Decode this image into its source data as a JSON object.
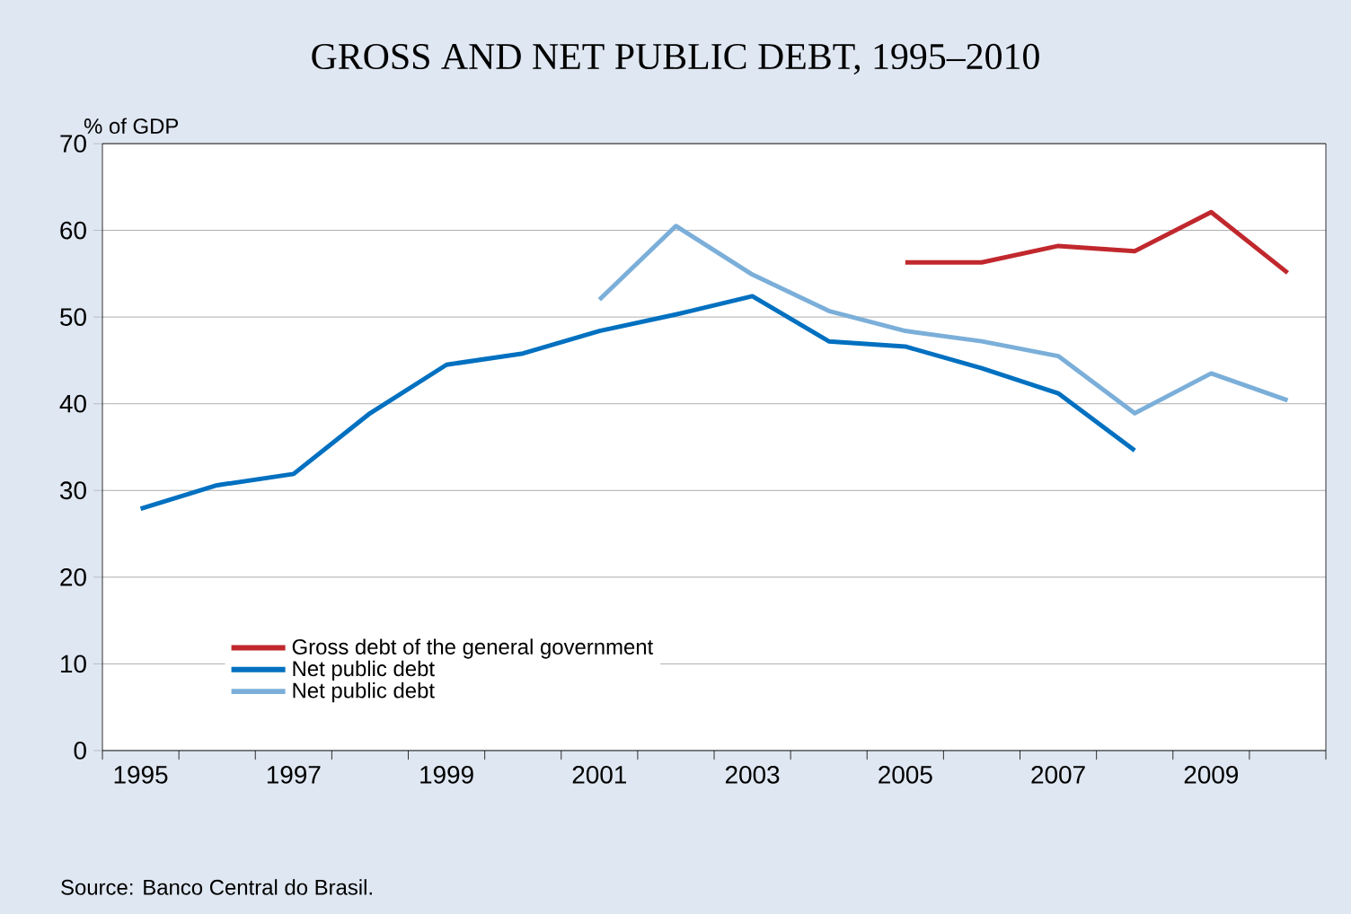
{
  "chart_data": {
    "type": "line",
    "title": "GROSS AND NET PUBLIC DEBT, 1995–2010",
    "ylabel": "% of GDP",
    "categories": [
      "1995",
      null,
      "1997",
      null,
      "1999",
      null,
      "2001",
      null,
      "2003",
      null,
      "2005",
      null,
      "2007",
      null,
      "2009",
      null
    ],
    "series": [
      {
        "name": "Gross debt of the general government",
        "color": "#c0282d",
        "values": [
          null,
          null,
          null,
          null,
          null,
          null,
          null,
          null,
          null,
          null,
          56.3,
          56.3,
          58.2,
          57.6,
          62.1,
          55.1
        ]
      },
      {
        "name": "Net public debt",
        "color": "#0070c0",
        "values": [
          27.9,
          30.6,
          31.9,
          38.9,
          44.5,
          45.8,
          48.4,
          50.3,
          52.4,
          47.2,
          46.6,
          44.1,
          41.2,
          34.6,
          null,
          null
        ]
      },
      {
        "name": "Net public debt",
        "color": "#7bafd9",
        "values": [
          null,
          null,
          null,
          null,
          null,
          null,
          52.0,
          60.5,
          54.9,
          50.7,
          48.4,
          47.2,
          45.5,
          38.9,
          43.5,
          40.4
        ]
      }
    ],
    "ylim": [
      0,
      70
    ],
    "yticks": [
      0,
      10,
      20,
      30,
      40,
      50,
      60,
      70
    ],
    "grid": "y",
    "legend": "bottom left",
    "annotations": [
      "Source: Banco Central do Brasil."
    ]
  }
}
